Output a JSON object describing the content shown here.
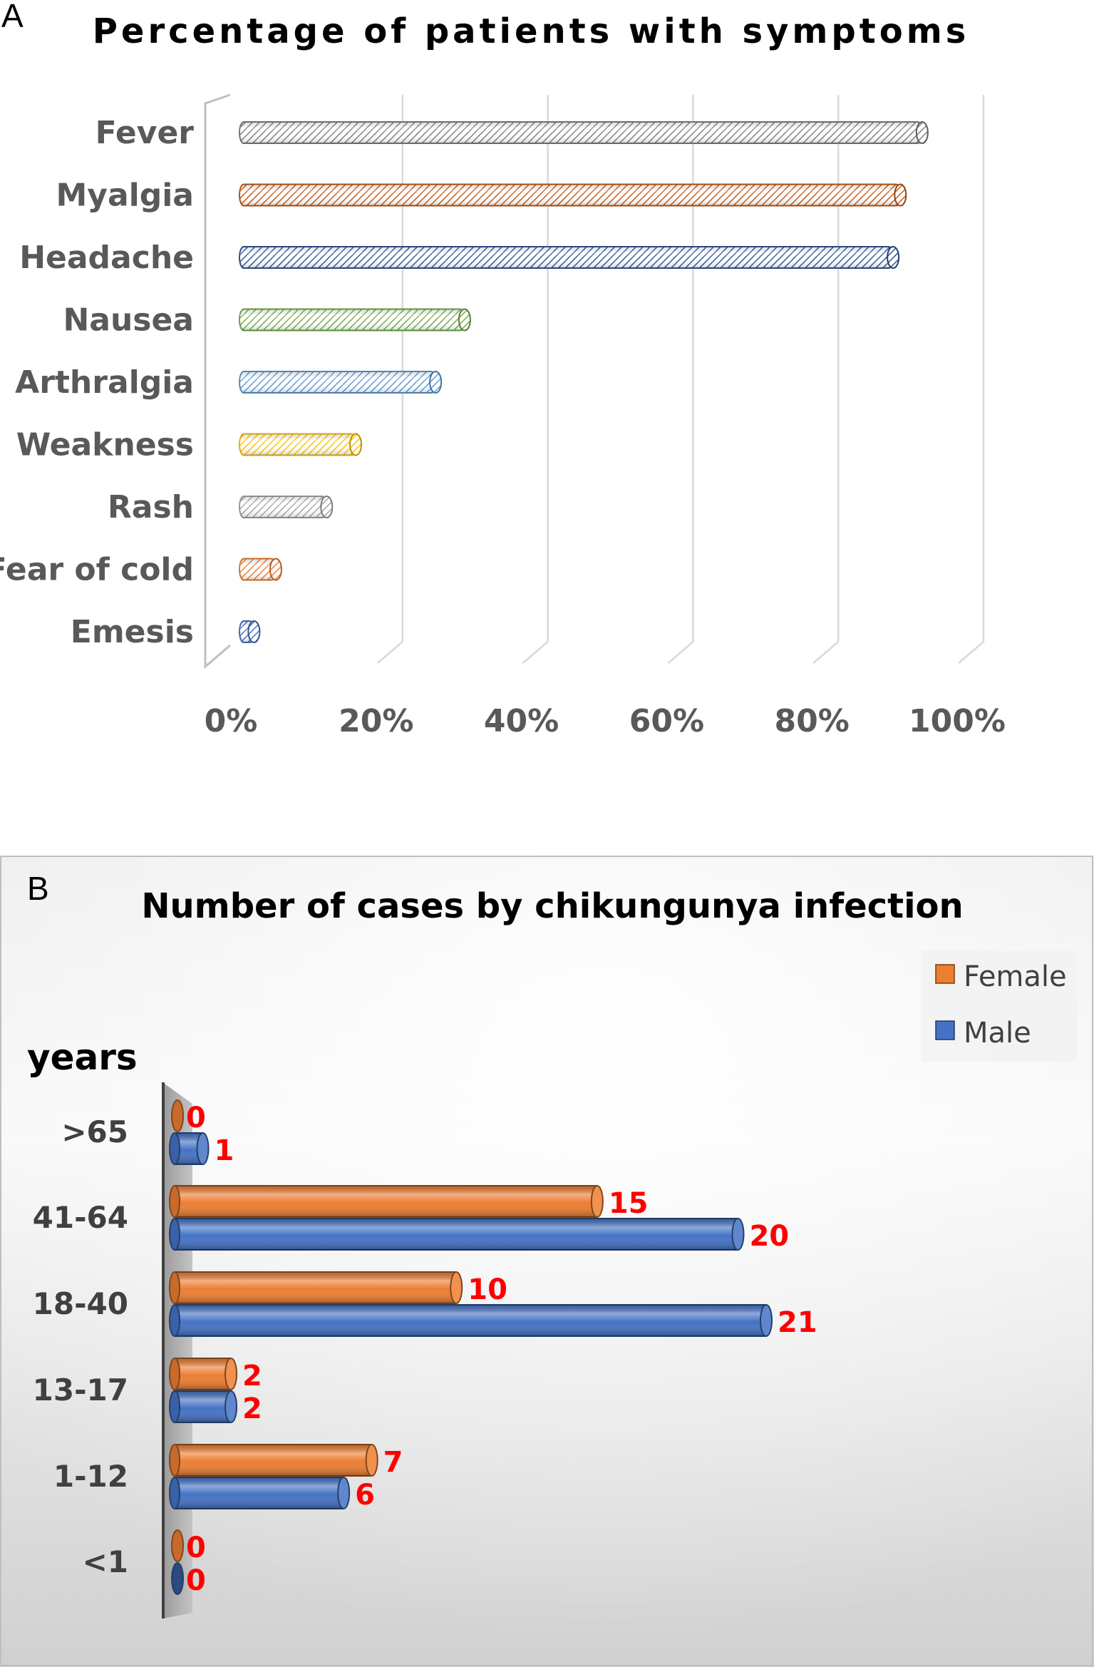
{
  "chart_data": [
    {
      "panel": "A",
      "type": "bar",
      "orientation": "horizontal",
      "title": "Percentage of patients with symptoms",
      "categories": [
        "Fever",
        "Myalgia",
        "Headache",
        "Nausea",
        "Arthralgia",
        "Weakness",
        "Rash",
        "Fear of cold",
        "Emesis"
      ],
      "values": [
        94,
        91,
        90,
        31,
        27,
        16,
        12,
        5,
        2
      ],
      "value_unit": "%",
      "xlim": [
        0,
        100
      ],
      "xticks": [
        "0%",
        "20%",
        "40%",
        "60%",
        "80%",
        "100%"
      ],
      "xtick_values": [
        0,
        20,
        40,
        60,
        80,
        100
      ],
      "grid": true,
      "bar_colors": [
        "#7f7f7f",
        "#c55a11",
        "#2f5597",
        "#70ad47",
        "#5b9bd5",
        "#ffc000",
        "#a5a5a5",
        "#ed7d31",
        "#4472c4"
      ]
    },
    {
      "panel": "B",
      "type": "bar",
      "orientation": "horizontal",
      "title": "Number of cases by chikungunya infection",
      "ylabel": "years",
      "categories": [
        ">65",
        "41-64",
        "18-40",
        "13-17",
        "1-12",
        "<1"
      ],
      "series": [
        {
          "name": "Female",
          "color": "#ed7d31",
          "values": [
            0,
            15,
            10,
            2,
            7,
            0
          ]
        },
        {
          "name": "Male",
          "color": "#4472c4",
          "values": [
            1,
            20,
            21,
            2,
            6,
            0
          ]
        }
      ],
      "xlim": [
        0,
        21
      ],
      "grid": false,
      "legend": "top-right",
      "label_color": "#ff0000"
    }
  ]
}
